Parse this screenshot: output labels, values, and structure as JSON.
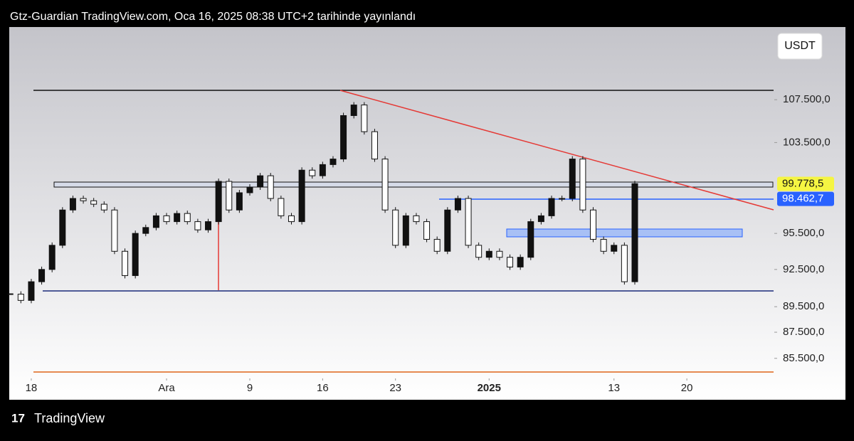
{
  "header": {
    "text": "Gtz-Guardian TradingView.com, Oca 16, 2025 08:38 UTC+2 tarihinde yayınlandı"
  },
  "currency": "USDT",
  "brand": "TradingView",
  "chart_data": {
    "type": "candlestick",
    "x": [
      -2,
      -1,
      0,
      1,
      2,
      3,
      4,
      5,
      6,
      7,
      8,
      9,
      10,
      11,
      12,
      13,
      14,
      15,
      16,
      17,
      18,
      19,
      20,
      21,
      22,
      23,
      24,
      25,
      26,
      27,
      28,
      29,
      30,
      31,
      32,
      33,
      34,
      35,
      36,
      37,
      38,
      39,
      40,
      41,
      42,
      43,
      44,
      45,
      46,
      47,
      48,
      49,
      50,
      51,
      52,
      53,
      54,
      55,
      56,
      57,
      58
    ],
    "closes": [
      90500,
      90000,
      91500,
      92500,
      94500,
      97500,
      98500,
      98300,
      98000,
      97500,
      94000,
      92000,
      95500,
      96000,
      97000,
      96500,
      97200,
      96500,
      95800,
      96500,
      100000,
      97500,
      99000,
      99500,
      100500,
      98500,
      97000,
      96500,
      101000,
      100500,
      101500,
      102000,
      106000,
      107000,
      104500,
      102000,
      97500,
      94500,
      97000,
      96500,
      95000,
      94000,
      97500,
      98500,
      94500,
      93500,
      94000,
      93500,
      92700,
      93500,
      96500,
      97000,
      98500,
      98500,
      102000,
      97500,
      95000,
      94000,
      94500,
      91500,
      99800
    ],
    "up_color": "#111111",
    "down_color": "#ffffff",
    "xlim": [
      -1.98,
      71.2
    ],
    "xticks": [
      {
        "value": 0,
        "label": "18"
      },
      {
        "value": 13,
        "label": "Ara"
      },
      {
        "value": 21,
        "label": "9"
      },
      {
        "value": 28,
        "label": "16"
      },
      {
        "value": 35,
        "label": "23"
      },
      {
        "value": 44,
        "label": "2025"
      },
      {
        "value": 56,
        "label": "13"
      },
      {
        "value": 63,
        "label": "20"
      }
    ],
    "ylim": [
      84100,
      114500
    ],
    "log_scale": true,
    "yticks": [
      {
        "value": 107500,
        "label": "107.500,0"
      },
      {
        "value": 103500,
        "label": "103.500,0"
      },
      {
        "value": 95500,
        "label": "95.500,0"
      },
      {
        "value": 92500,
        "label": "92.500,0"
      },
      {
        "value": 89500,
        "label": "89.500,0"
      },
      {
        "value": 87500,
        "label": "87.500,0"
      },
      {
        "value": 85500,
        "label": "85.500,0"
      }
    ],
    "price_tags": [
      {
        "value": 99778.5,
        "label": "99.778,5",
        "color": "#f5f542"
      },
      {
        "value": 98462.7,
        "label": "98.462,7",
        "color": "#2962ff"
      }
    ]
  }
}
